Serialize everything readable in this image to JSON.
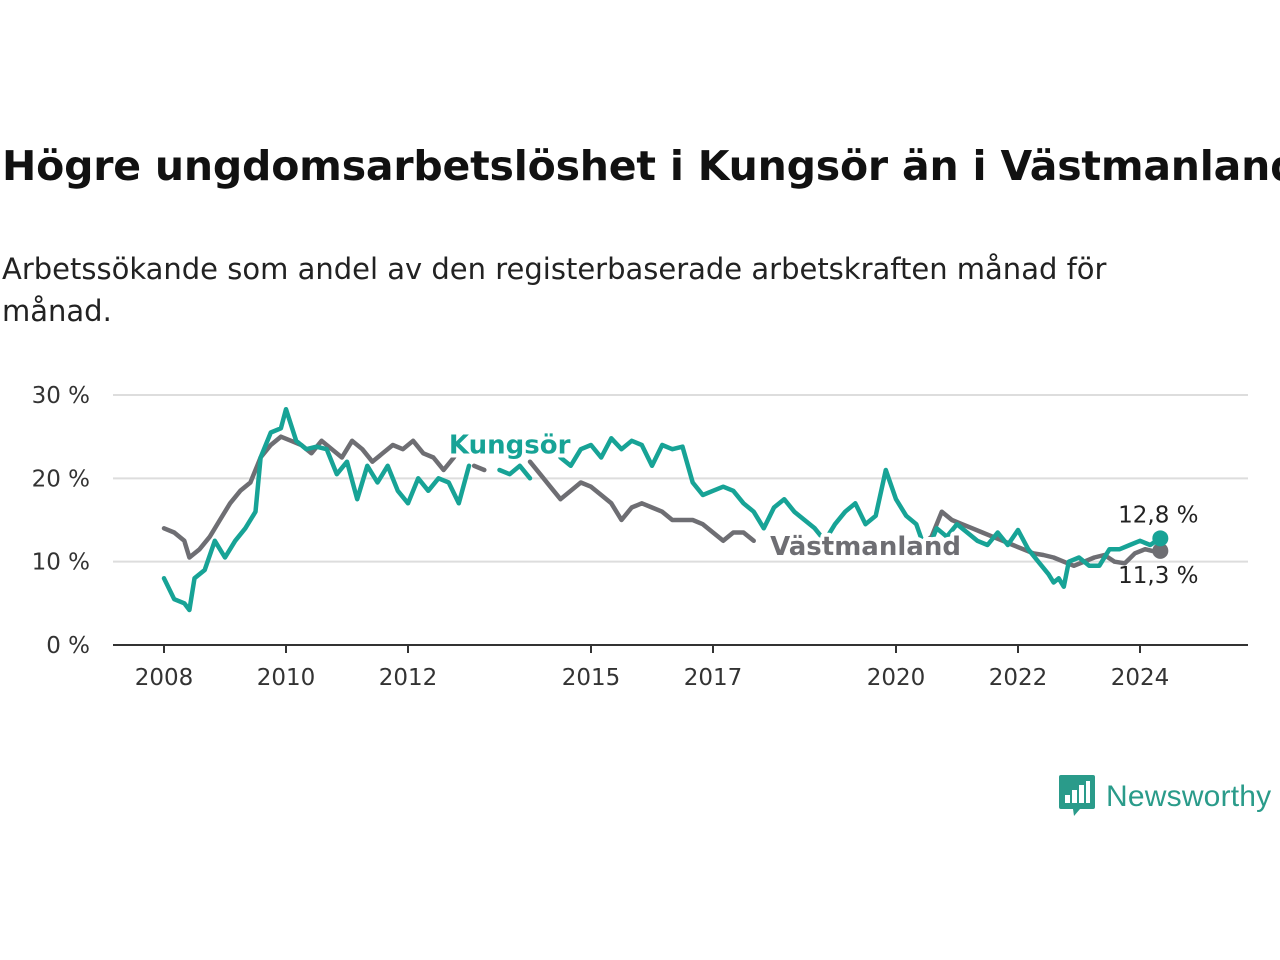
{
  "title": "Högre ungdomsarbetslöshet i Kungsör än i Västmanland",
  "subtitle": "Arbetssökande som andel av den registerbaserade arbetskraften månad för månad.",
  "brand": {
    "name": "Newsworthy",
    "icon": "newsworthy-logo-icon"
  },
  "colors": {
    "kungsor": "#17a396",
    "vastmanland": "#6e6e73",
    "grid": "#dddddd",
    "axis": "#333333"
  },
  "chart_data": {
    "type": "line",
    "title": "Högre ungdomsarbetslöshet i Kungsör än i Västmanland",
    "x_ticks": [
      "2008",
      "2010",
      "2012",
      "2015",
      "2017",
      "2020",
      "2022",
      "2024"
    ],
    "y_ticks": [
      "0 %",
      "10 %",
      "20 %",
      "30 %"
    ],
    "ylim": [
      0,
      30
    ],
    "xlim": [
      "2007-11",
      "2025-08"
    ],
    "grid": "horizontal",
    "series": [
      {
        "name": "Kungsör",
        "color": "#17a396",
        "end_label": "12,8 %",
        "points": [
          [
            "2008-01",
            8.0
          ],
          [
            "2008-03",
            5.5
          ],
          [
            "2008-05",
            5.0
          ],
          [
            "2008-06",
            4.2
          ],
          [
            "2008-07",
            8.0
          ],
          [
            "2008-09",
            9.0
          ],
          [
            "2008-11",
            12.5
          ],
          [
            "2009-01",
            10.5
          ],
          [
            "2009-03",
            12.5
          ],
          [
            "2009-05",
            14.0
          ],
          [
            "2009-07",
            16.0
          ],
          [
            "2009-08",
            22.5
          ],
          [
            "2009-10",
            25.5
          ],
          [
            "2009-12",
            26.0
          ],
          [
            "2010-01",
            28.3
          ],
          [
            "2010-03",
            24.5
          ],
          [
            "2010-05",
            23.5
          ],
          [
            "2010-07",
            23.8
          ],
          [
            "2010-09",
            23.5
          ],
          [
            "2010-11",
            20.5
          ],
          [
            "2011-01",
            22.0
          ],
          [
            "2011-03",
            17.5
          ],
          [
            "2011-05",
            21.5
          ],
          [
            "2011-07",
            19.5
          ],
          [
            "2011-09",
            21.5
          ],
          [
            "2011-11",
            18.5
          ],
          [
            "2012-01",
            17.0
          ],
          [
            "2012-03",
            20.0
          ],
          [
            "2012-05",
            18.5
          ],
          [
            "2012-07",
            20.0
          ],
          [
            "2012-09",
            19.5
          ],
          [
            "2012-11",
            17.0
          ],
          [
            "2013-01",
            21.5
          ],
          null,
          [
            "2013-07",
            21.0
          ],
          [
            "2013-09",
            20.5
          ],
          [
            "2013-11",
            21.5
          ],
          [
            "2014-01",
            20.0
          ],
          null,
          [
            "2014-07",
            22.5
          ],
          [
            "2014-09",
            21.5
          ],
          [
            "2014-11",
            23.5
          ],
          [
            "2015-01",
            24.0
          ],
          [
            "2015-03",
            22.5
          ],
          [
            "2015-05",
            24.8
          ],
          [
            "2015-07",
            23.5
          ],
          [
            "2015-09",
            24.5
          ],
          [
            "2015-11",
            24.0
          ],
          [
            "2016-01",
            21.5
          ],
          [
            "2016-03",
            24.0
          ],
          [
            "2016-05",
            23.5
          ],
          [
            "2016-07",
            23.8
          ],
          [
            "2016-09",
            19.5
          ],
          [
            "2016-11",
            18.0
          ],
          [
            "2017-01",
            18.5
          ],
          [
            "2017-03",
            19.0
          ],
          [
            "2017-05",
            18.5
          ],
          [
            "2017-07",
            17.0
          ],
          [
            "2017-09",
            16.0
          ],
          [
            "2017-11",
            14.0
          ],
          [
            "2018-01",
            16.5
          ],
          [
            "2018-03",
            17.5
          ],
          [
            "2018-05",
            16.0
          ],
          [
            "2018-07",
            15.0
          ],
          [
            "2018-09",
            14.0
          ],
          [
            "2018-11",
            12.5
          ],
          [
            "2019-01",
            14.5
          ],
          [
            "2019-03",
            16.0
          ],
          [
            "2019-05",
            17.0
          ],
          [
            "2019-07",
            14.5
          ],
          [
            "2019-09",
            15.5
          ],
          [
            "2019-11",
            21.0
          ],
          [
            "2020-01",
            17.5
          ],
          [
            "2020-03",
            15.5
          ],
          [
            "2020-05",
            14.5
          ],
          [
            "2020-07",
            11.0
          ],
          [
            "2020-09",
            14.0
          ],
          [
            "2020-11",
            13.0
          ],
          [
            "2021-01",
            14.5
          ],
          [
            "2021-03",
            13.5
          ],
          [
            "2021-05",
            12.5
          ],
          [
            "2021-07",
            12.0
          ],
          [
            "2021-09",
            13.5
          ],
          [
            "2021-11",
            12.0
          ],
          [
            "2022-01",
            13.8
          ],
          [
            "2022-03",
            11.5
          ],
          [
            "2022-05",
            10.0
          ],
          [
            "2022-07",
            8.5
          ],
          [
            "2022-08",
            7.5
          ],
          [
            "2022-09",
            8.0
          ],
          [
            "2022-10",
            7.0
          ],
          [
            "2022-11",
            10.0
          ],
          [
            "2023-01",
            10.5
          ],
          [
            "2023-03",
            9.5
          ],
          [
            "2023-05",
            9.5
          ],
          [
            "2023-07",
            11.5
          ],
          [
            "2023-09",
            11.5
          ],
          [
            "2023-11",
            12.0
          ],
          [
            "2024-01",
            12.5
          ],
          [
            "2024-03",
            12.0
          ],
          [
            "2024-05",
            12.8
          ]
        ]
      },
      {
        "name": "Västmanland",
        "color": "#6e6e73",
        "end_label": "11,3 %",
        "points": [
          [
            "2008-01",
            14.0
          ],
          [
            "2008-03",
            13.5
          ],
          [
            "2008-05",
            12.5
          ],
          [
            "2008-06",
            10.5
          ],
          [
            "2008-08",
            11.5
          ],
          [
            "2008-10",
            13.0
          ],
          [
            "2008-12",
            15.0
          ],
          [
            "2009-02",
            17.0
          ],
          [
            "2009-04",
            18.5
          ],
          [
            "2009-06",
            19.5
          ],
          [
            "2009-08",
            22.5
          ],
          [
            "2009-10",
            24.0
          ],
          [
            "2009-12",
            25.0
          ],
          [
            "2010-02",
            24.5
          ],
          [
            "2010-04",
            24.0
          ],
          [
            "2010-06",
            23.0
          ],
          [
            "2010-08",
            24.5
          ],
          [
            "2010-10",
            23.5
          ],
          [
            "2010-12",
            22.5
          ],
          [
            "2011-02",
            24.5
          ],
          [
            "2011-04",
            23.5
          ],
          [
            "2011-06",
            22.0
          ],
          [
            "2011-08",
            23.0
          ],
          [
            "2011-10",
            24.0
          ],
          [
            "2011-12",
            23.5
          ],
          [
            "2012-02",
            24.5
          ],
          [
            "2012-04",
            23.0
          ],
          [
            "2012-06",
            22.5
          ],
          [
            "2012-08",
            21.0
          ],
          [
            "2012-10",
            22.5
          ],
          [
            "2012-11",
            23.5
          ],
          null,
          [
            "2013-02",
            21.5
          ],
          [
            "2013-04",
            21.0
          ],
          null,
          [
            "2014-01",
            22.0
          ],
          [
            "2014-03",
            20.5
          ],
          [
            "2014-05",
            19.0
          ],
          [
            "2014-07",
            17.5
          ],
          [
            "2014-09",
            18.5
          ],
          [
            "2014-11",
            19.5
          ],
          [
            "2015-01",
            19.0
          ],
          [
            "2015-03",
            18.0
          ],
          [
            "2015-05",
            17.0
          ],
          [
            "2015-07",
            15.0
          ],
          [
            "2015-09",
            16.5
          ],
          [
            "2015-11",
            17.0
          ],
          [
            "2016-01",
            16.5
          ],
          [
            "2016-03",
            16.0
          ],
          [
            "2016-05",
            15.0
          ],
          [
            "2016-07",
            15.0
          ],
          [
            "2016-09",
            15.0
          ],
          [
            "2016-11",
            14.5
          ],
          [
            "2017-01",
            13.5
          ],
          [
            "2017-03",
            12.5
          ],
          [
            "2017-05",
            13.5
          ],
          [
            "2017-07",
            13.5
          ],
          [
            "2017-09",
            12.5
          ],
          null,
          [
            "2020-06",
            12.0
          ],
          [
            "2020-08",
            13.0
          ],
          [
            "2020-10",
            16.0
          ],
          [
            "2020-12",
            15.0
          ],
          [
            "2021-02",
            14.5
          ],
          [
            "2021-04",
            14.0
          ],
          [
            "2021-06",
            13.5
          ],
          [
            "2021-08",
            13.0
          ],
          [
            "2021-10",
            12.5
          ],
          [
            "2021-12",
            12.0
          ],
          [
            "2022-02",
            11.5
          ],
          [
            "2022-04",
            11.0
          ],
          [
            "2022-06",
            10.8
          ],
          [
            "2022-08",
            10.5
          ],
          [
            "2022-10",
            10.0
          ],
          [
            "2022-12",
            9.5
          ],
          [
            "2023-02",
            10.0
          ],
          [
            "2023-04",
            10.5
          ],
          [
            "2023-06",
            10.8
          ],
          [
            "2023-08",
            10.0
          ],
          [
            "2023-10",
            9.8
          ],
          [
            "2023-12",
            11.0
          ],
          [
            "2024-02",
            11.5
          ],
          [
            "2024-04",
            11.2
          ],
          [
            "2024-05",
            11.3
          ]
        ]
      }
    ],
    "labels": [
      {
        "text": "Kungsör",
        "series": "Kungsör",
        "at": [
          "2013-09",
          23.0
        ]
      },
      {
        "text": "Västmanland",
        "series": "Västmanland",
        "at": [
          "2019-07",
          10.8
        ]
      }
    ]
  }
}
